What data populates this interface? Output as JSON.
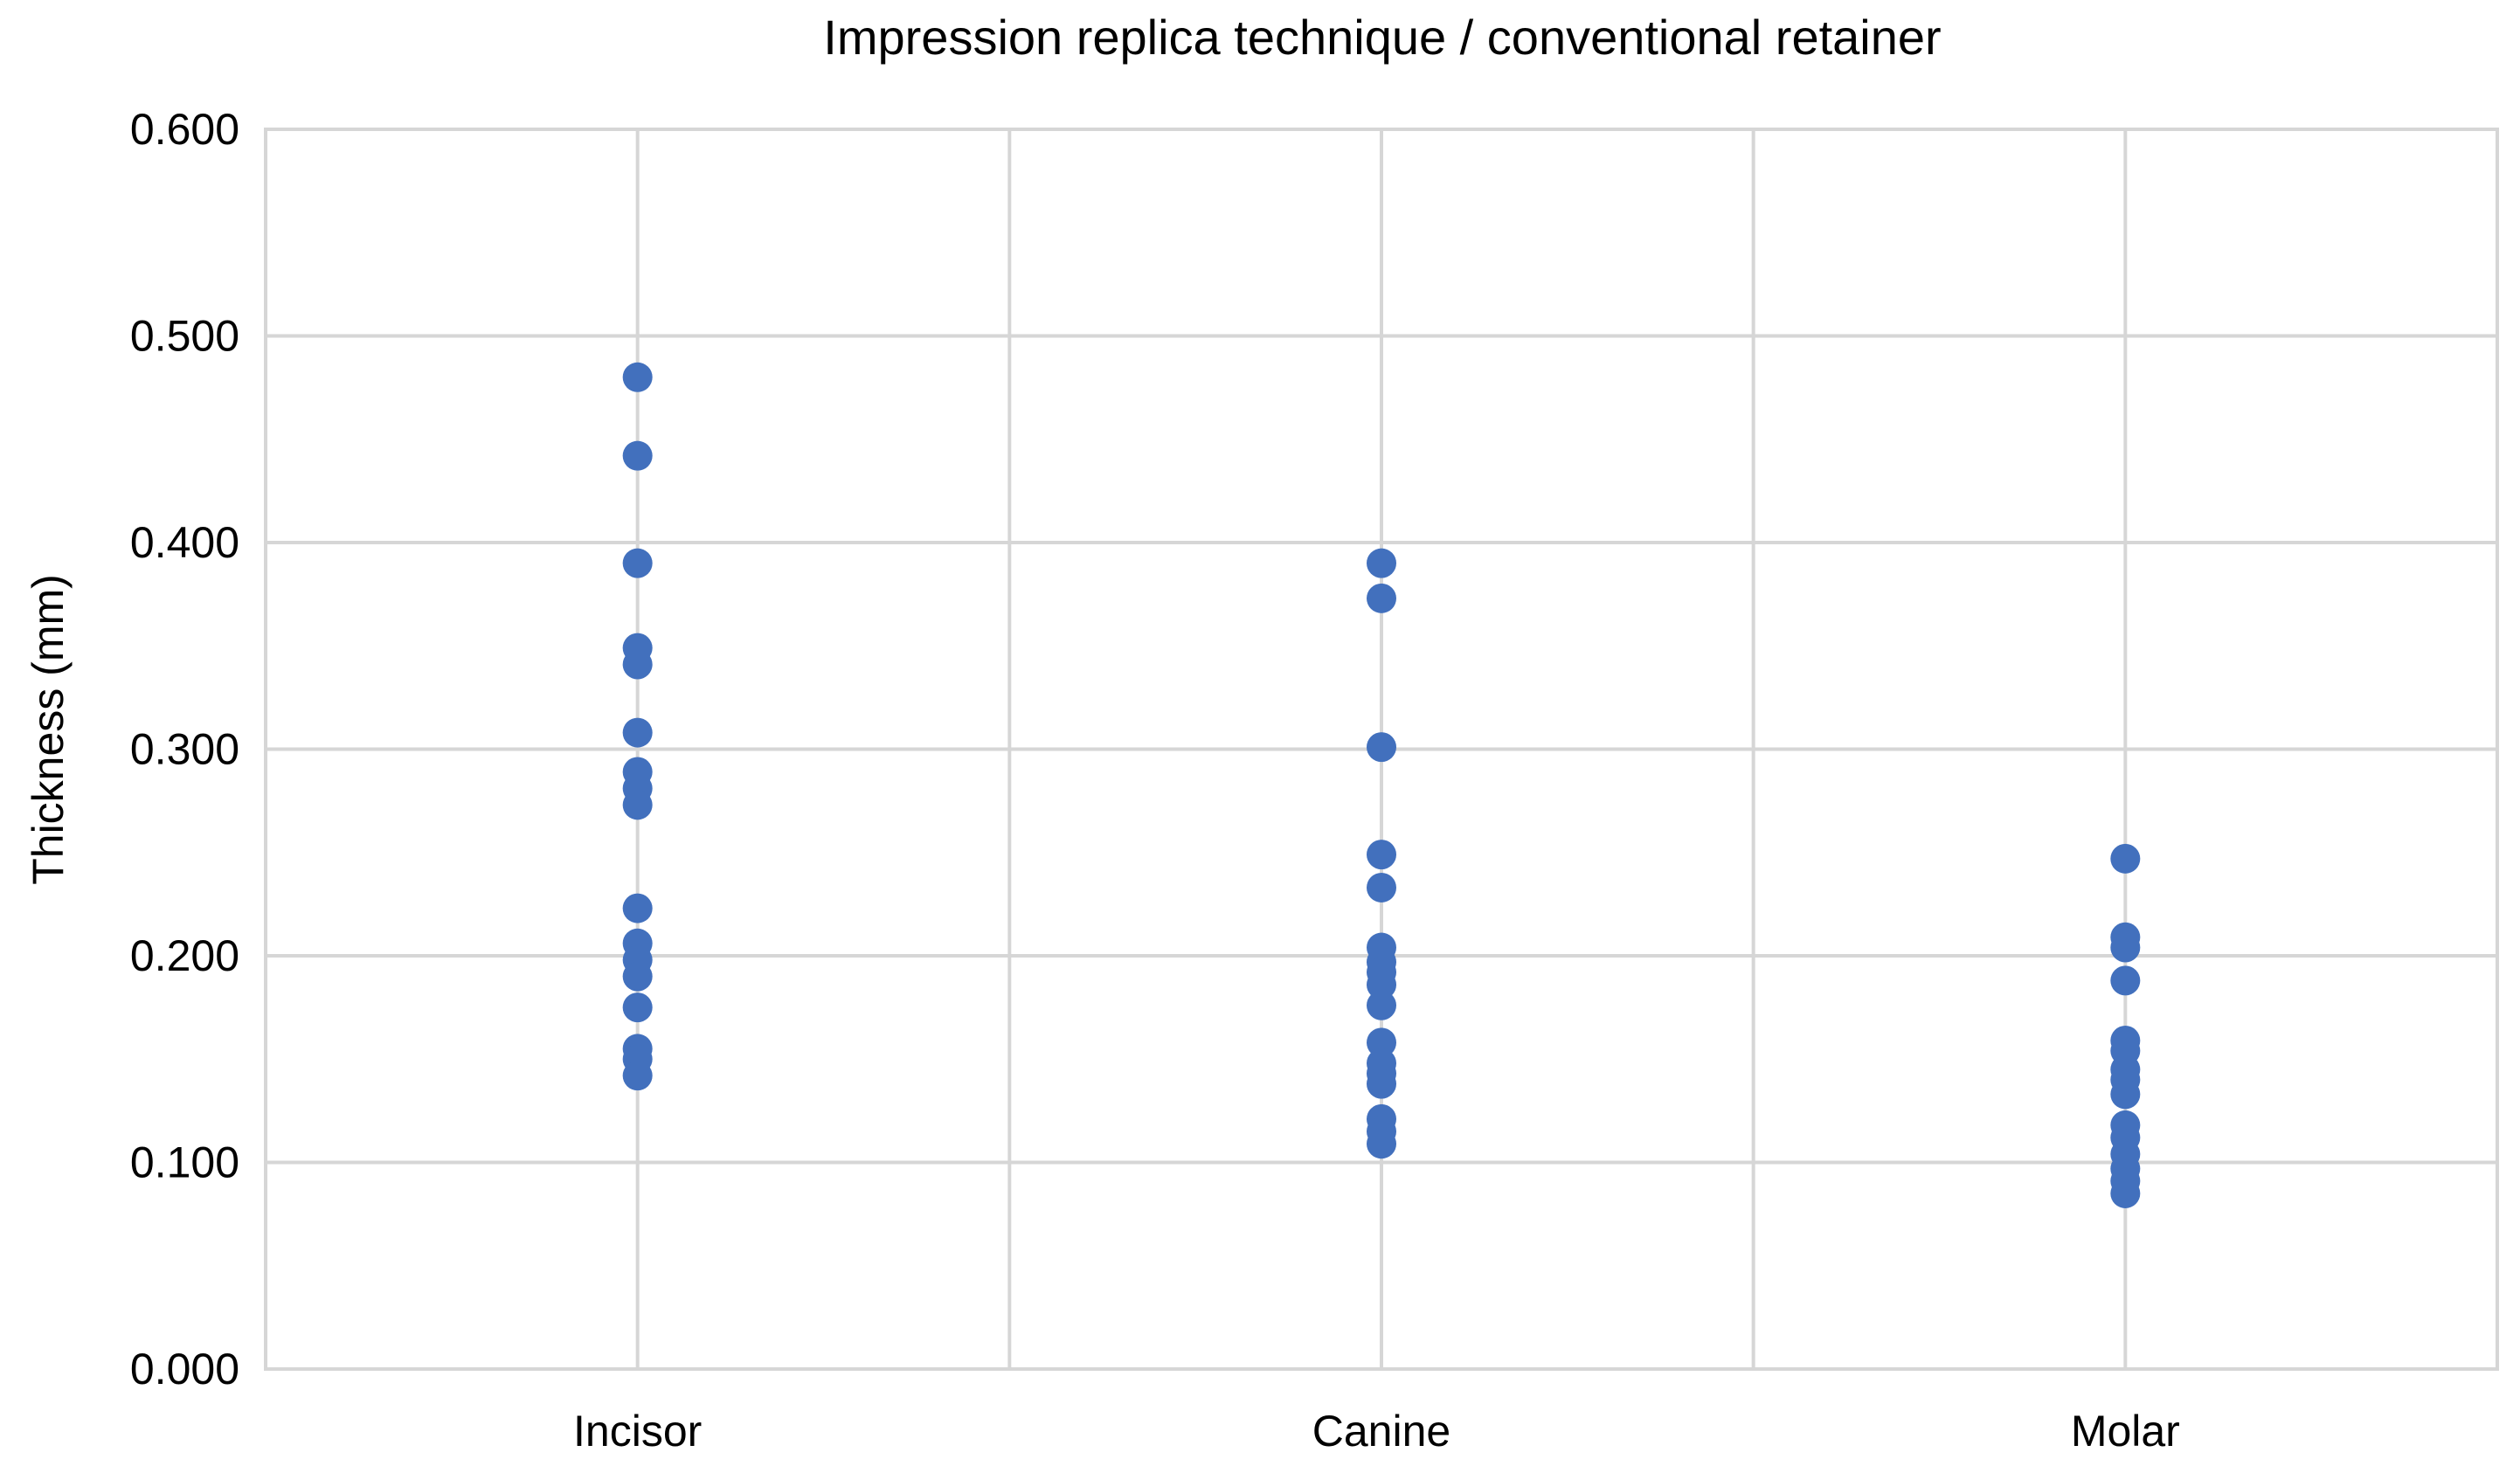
{
  "chart_data": {
    "type": "scatter",
    "title": "Impression replica technique / conventional retainer",
    "xlabel": "",
    "ylabel": "Thickness (mm)",
    "categories": [
      "Incisor",
      "Canine",
      "Molar"
    ],
    "ylim": [
      0,
      0.6
    ],
    "yticks": [
      0,
      0.1,
      0.2,
      0.3,
      0.4,
      0.5,
      0.6
    ],
    "ytick_labels": [
      "0.000",
      "0.100",
      "0.200",
      "0.300",
      "0.400",
      "0.500",
      "0.600"
    ],
    "grid": true,
    "legend": "none",
    "marker_color": "#4270bd",
    "series": [
      {
        "values_by_category": [
          [
            0.48,
            0.442,
            0.39,
            0.349,
            0.341,
            0.308,
            0.289,
            0.281,
            0.273,
            0.223,
            0.206,
            0.198,
            0.19,
            0.175,
            0.155,
            0.15,
            0.142
          ],
          [
            0.39,
            0.373,
            0.301,
            0.249,
            0.233,
            0.204,
            0.197,
            0.192,
            0.186,
            0.176,
            0.158,
            0.148,
            0.143,
            0.138,
            0.121,
            0.115,
            0.109
          ],
          [
            0.247,
            0.209,
            0.204,
            0.188,
            0.159,
            0.154,
            0.145,
            0.14,
            0.133,
            0.118,
            0.112,
            0.104,
            0.097,
            0.091,
            0.085
          ]
        ]
      }
    ]
  }
}
